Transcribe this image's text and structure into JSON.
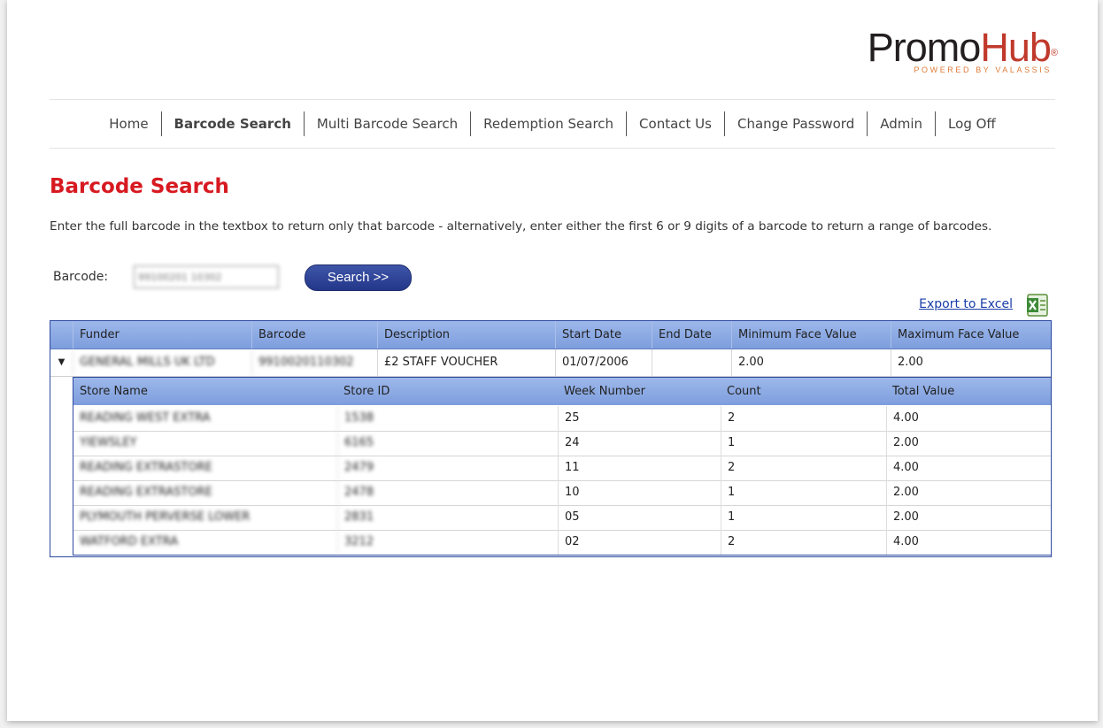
{
  "logo": {
    "promo": "Promo",
    "hub": "Hub",
    "reg": "®",
    "tagline": "POWERED BY VALASSIS"
  },
  "nav": [
    "Home",
    "Barcode Search",
    "Multi Barcode Search",
    "Redemption Search",
    "Contact Us",
    "Change Password",
    "Admin",
    "Log Off"
  ],
  "page": {
    "title": "Barcode Search",
    "description": "Enter the full barcode in the textbox to return only that barcode - alternatively, enter either the first 6 or 9 digits of a barcode to return a range of barcodes."
  },
  "search": {
    "label": "Barcode:",
    "value": "99100201 10302",
    "button": "Search >>"
  },
  "export": {
    "label": "Export to Excel",
    "icon": "excel-icon"
  },
  "grid": {
    "headers": [
      "Funder",
      "Barcode",
      "Description",
      "Start Date",
      "End Date",
      "Minimum Face Value",
      "Maximum Face Value"
    ],
    "row": {
      "expander": "▼",
      "funder": "GENERAL MILLS UK LTD",
      "barcode": "9910020110302",
      "description": "£2 STAFF VOUCHER",
      "start_date": "01/07/2006",
      "end_date": "",
      "min_face": "2.00",
      "max_face": "2.00"
    },
    "detail_headers": [
      "Store Name",
      "Store ID",
      "Week Number",
      "Count",
      "Total Value"
    ],
    "detail_rows": [
      {
        "store": "READING WEST EXTRA",
        "id": "1538",
        "week": "25",
        "count": "2",
        "total": "4.00"
      },
      {
        "store": "YIEWSLEY",
        "id": "6165",
        "week": "24",
        "count": "1",
        "total": "2.00"
      },
      {
        "store": "READING EXTRASTORE",
        "id": "2479",
        "week": "11",
        "count": "2",
        "total": "4.00"
      },
      {
        "store": "READING EXTRASTORE",
        "id": "2478",
        "week": "10",
        "count": "1",
        "total": "2.00"
      },
      {
        "store": "PLYMOUTH PERVERSE LOWER",
        "id": "2831",
        "week": "05",
        "count": "1",
        "total": "2.00"
      },
      {
        "store": "WATFORD EXTRA",
        "id": "3212",
        "week": "02",
        "count": "2",
        "total": "4.00"
      }
    ]
  }
}
